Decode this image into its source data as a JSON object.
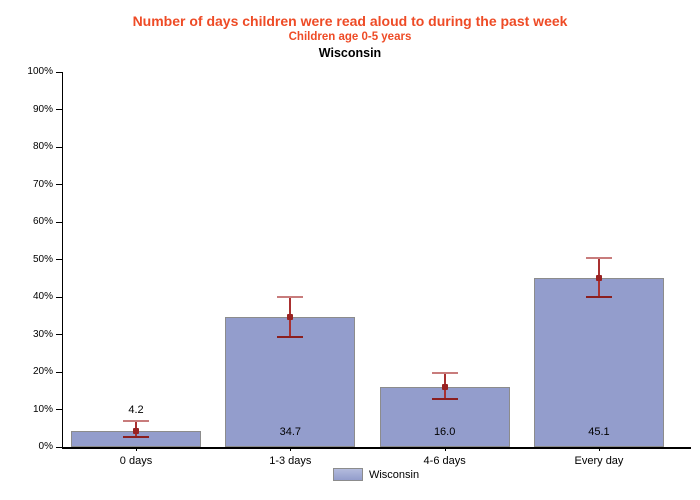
{
  "header": {
    "title": "Number of days children were read aloud to during the past week",
    "subtitle": "Children age 0-5 years",
    "region": "Wisconsin"
  },
  "legend": {
    "label": "Wisconsin"
  },
  "colors": {
    "title_red": "#ee4b26",
    "bar_fill": "#939dcc",
    "bar_fill_light": "#b3bbdd",
    "bar_border": "#8c8c8c",
    "error_line": "#a93030",
    "error_cap_upper": "#c87c7c",
    "error_cap_lower": "#8b1f1f",
    "error_dot": "#992222",
    "axis": "#000000"
  },
  "chart_data": {
    "type": "bar",
    "title": "Number of days children were read aloud to during the past week",
    "subtitle": "Children age 0-5 years",
    "region_title": "Wisconsin",
    "categories": [
      "0 days",
      "1-3 days",
      "4-6 days",
      "Every day"
    ],
    "series": [
      {
        "name": "Wisconsin",
        "values": [
          4.2,
          34.7,
          16.0,
          45.1
        ],
        "value_labels": [
          "4.2",
          "34.7",
          "16.0",
          "45.1"
        ],
        "error_low": [
          2.6,
          29.4,
          12.8,
          39.9
        ],
        "error_high": [
          7.0,
          40.0,
          19.8,
          50.3
        ]
      }
    ],
    "ylabel": "",
    "xlabel": "",
    "ylim": [
      0,
      100
    ],
    "ytick_step": 10,
    "ytick_labels": [
      "0%",
      "10%",
      "20%",
      "30%",
      "40%",
      "50%",
      "60%",
      "70%",
      "80%",
      "90%",
      "100%"
    ],
    "grid": false,
    "error_bars": true,
    "legend_position": "bottom"
  }
}
